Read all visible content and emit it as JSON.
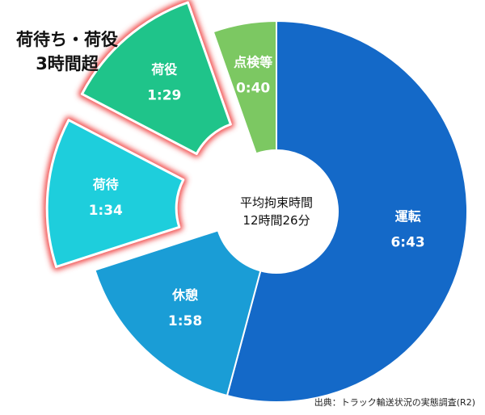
{
  "headline": {
    "line1": "荷待ち・荷役",
    "line2": "3時間超"
  },
  "source": "出典：トラック輸送状況の実態調査(R2)",
  "chart_data": {
    "type": "pie",
    "variant": "donut",
    "center_label": [
      "平均拘束時間",
      "12時間26分"
    ],
    "direction": "clockwise",
    "start_at": "12 o'clock",
    "slices": [
      {
        "label": "運転",
        "value_text": "6:43",
        "minutes": 403,
        "color": "#1469C8",
        "exploded": false,
        "highlighted": false
      },
      {
        "label": "休憩",
        "value_text": "1:58",
        "minutes": 118,
        "color": "#1A9DD6",
        "exploded": false,
        "highlighted": false
      },
      {
        "label": "荷待",
        "value_text": "1:34",
        "minutes": 94,
        "color": "#1ECEDC",
        "exploded": true,
        "highlighted": true
      },
      {
        "label": "荷役",
        "value_text": "1:29",
        "minutes": 89,
        "color": "#1FC48A",
        "exploded": true,
        "highlighted": true
      },
      {
        "label": "点検等",
        "value_text": "0:40",
        "minutes": 40,
        "color": "#7CC862",
        "exploded": false,
        "highlighted": false
      }
    ],
    "highlight_color": "#F04848"
  }
}
